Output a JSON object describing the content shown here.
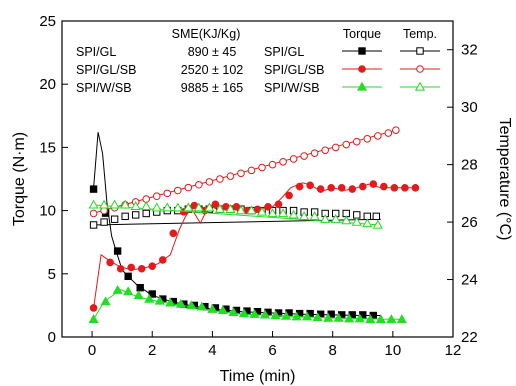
{
  "chart_data": {
    "type": "line",
    "xlabel": "Time (min)",
    "ylabel_left": "Torque (N·m)",
    "ylabel_right": "Temperature (°C)",
    "xlim": [
      -1,
      12
    ],
    "ylim_left": [
      0,
      25
    ],
    "ylim_right": [
      22,
      33
    ],
    "xticks": [
      0,
      2,
      4,
      6,
      8,
      10,
      12
    ],
    "yticks_left": [
      0,
      5,
      10,
      15,
      20,
      25
    ],
    "yticks_right": [
      22,
      24,
      26,
      28,
      30,
      32
    ],
    "grid": false,
    "sme_table": {
      "header": "SME(KJ/Kg)",
      "rows": [
        {
          "sample": "SPI/GL",
          "value": "890 ± 45"
        },
        {
          "sample": "SPI/GL/SB",
          "value": "2520 ± 102"
        },
        {
          "sample": "SPI/W/SB",
          "value": "9885 ± 165"
        }
      ]
    },
    "legend": {
      "placement": "top-right",
      "col_torque": "Torque",
      "col_temp": "Temp.",
      "entries": [
        {
          "label": "SPI/GL",
          "color": "#000000",
          "marker": "square"
        },
        {
          "label": "SPI/GL/SB",
          "color": "#e41a1c",
          "marker": "circle"
        },
        {
          "label": "SPI/W/SB",
          "color": "#22dd22",
          "marker": "triangle"
        }
      ]
    },
    "series": [
      {
        "name": "SPI/GL",
        "kind": "torque",
        "axis": "left",
        "color": "#000000",
        "marker": "square",
        "filled": true,
        "line": [
          [
            0.05,
            11.8
          ],
          [
            0.2,
            16.2
          ],
          [
            0.35,
            14.5
          ],
          [
            0.5,
            10.5
          ],
          [
            0.65,
            8.0
          ],
          [
            0.8,
            6.8
          ],
          [
            1.0,
            5.3
          ],
          [
            1.2,
            4.8
          ],
          [
            1.5,
            4.1
          ],
          [
            2.0,
            3.3
          ],
          [
            2.5,
            2.9
          ],
          [
            3.0,
            2.6
          ],
          [
            4.0,
            2.2
          ],
          [
            5.0,
            2.0
          ],
          [
            6.0,
            1.9
          ],
          [
            7.0,
            1.8
          ],
          [
            8.0,
            1.75
          ],
          [
            9.0,
            1.7
          ],
          [
            9.6,
            1.7
          ]
        ],
        "points": [
          [
            0.05,
            11.7
          ],
          [
            0.45,
            9.8
          ],
          [
            0.85,
            6.8
          ],
          [
            1.2,
            4.8
          ],
          [
            1.6,
            3.9
          ],
          [
            2.0,
            3.4
          ],
          [
            2.35,
            3.0
          ],
          [
            2.7,
            2.8
          ],
          [
            3.05,
            2.6
          ],
          [
            3.4,
            2.5
          ],
          [
            3.75,
            2.4
          ],
          [
            4.1,
            2.3
          ],
          [
            4.45,
            2.2
          ],
          [
            4.8,
            2.1
          ],
          [
            5.15,
            2.05
          ],
          [
            5.5,
            2.0
          ],
          [
            5.85,
            1.95
          ],
          [
            6.2,
            1.9
          ],
          [
            6.55,
            1.9
          ],
          [
            6.9,
            1.85
          ],
          [
            7.25,
            1.85
          ],
          [
            7.6,
            1.8
          ],
          [
            7.95,
            1.8
          ],
          [
            8.3,
            1.75
          ],
          [
            8.65,
            1.75
          ],
          [
            9.0,
            1.75
          ],
          [
            9.35,
            1.7
          ]
        ]
      },
      {
        "name": "SPI/GL",
        "kind": "temp",
        "axis": "right",
        "color": "#000000",
        "marker": "square",
        "filled": false,
        "line": [
          [
            0,
            25.9
          ],
          [
            9.6,
            26.1
          ]
        ],
        "points": [
          [
            0.05,
            25.9
          ],
          [
            0.4,
            26.0
          ],
          [
            0.75,
            26.1
          ],
          [
            1.1,
            26.2
          ],
          [
            1.45,
            26.25
          ],
          [
            1.8,
            26.3
          ],
          [
            2.15,
            26.35
          ],
          [
            2.5,
            26.4
          ],
          [
            2.85,
            26.4
          ],
          [
            3.2,
            26.45
          ],
          [
            3.55,
            26.45
          ],
          [
            3.9,
            26.45
          ],
          [
            4.25,
            26.45
          ],
          [
            4.6,
            26.45
          ],
          [
            4.95,
            26.45
          ],
          [
            5.3,
            26.4
          ],
          [
            5.65,
            26.4
          ],
          [
            6.0,
            26.4
          ],
          [
            6.35,
            26.4
          ],
          [
            6.7,
            26.4
          ],
          [
            7.05,
            26.35
          ],
          [
            7.4,
            26.35
          ],
          [
            7.75,
            26.3
          ],
          [
            8.1,
            26.3
          ],
          [
            8.45,
            26.3
          ],
          [
            8.8,
            26.25
          ],
          [
            9.15,
            26.2
          ],
          [
            9.45,
            26.2
          ]
        ]
      },
      {
        "name": "SPI/GL/SB",
        "kind": "torque",
        "axis": "left",
        "color": "#e41a1c",
        "marker": "circle",
        "filled": true,
        "line": [
          [
            0.05,
            2.3
          ],
          [
            0.3,
            6.5
          ],
          [
            0.6,
            6.0
          ],
          [
            0.9,
            5.6
          ],
          [
            1.3,
            5.3
          ],
          [
            1.8,
            5.5
          ],
          [
            2.2,
            5.8
          ],
          [
            2.6,
            6.5
          ],
          [
            2.9,
            8.5
          ],
          [
            3.1,
            9.5
          ],
          [
            3.3,
            10.2
          ],
          [
            3.6,
            9.0
          ],
          [
            3.9,
            10.5
          ],
          [
            4.2,
            10.0
          ],
          [
            4.5,
            10.4
          ],
          [
            5.0,
            10.0
          ],
          [
            5.5,
            10.1
          ],
          [
            6.0,
            10.3
          ],
          [
            6.3,
            11.0
          ],
          [
            6.6,
            11.8
          ],
          [
            7.0,
            12.2
          ],
          [
            7.3,
            12.0
          ],
          [
            7.6,
            11.5
          ],
          [
            8.0,
            11.8
          ],
          [
            8.4,
            11.6
          ],
          [
            8.8,
            11.8
          ],
          [
            9.2,
            12.1
          ],
          [
            9.6,
            11.8
          ],
          [
            10.0,
            11.8
          ],
          [
            10.8,
            11.8
          ]
        ],
        "points": [
          [
            0.05,
            2.3
          ],
          [
            0.6,
            5.9
          ],
          [
            0.95,
            5.4
          ],
          [
            1.3,
            5.5
          ],
          [
            1.65,
            5.4
          ],
          [
            2.0,
            5.6
          ],
          [
            2.35,
            6.1
          ],
          [
            2.7,
            8.2
          ],
          [
            3.05,
            9.9
          ],
          [
            3.4,
            10.4
          ],
          [
            3.75,
            10.0
          ],
          [
            4.1,
            10.5
          ],
          [
            4.45,
            10.3
          ],
          [
            4.8,
            10.3
          ],
          [
            5.15,
            10.0
          ],
          [
            5.5,
            10.1
          ],
          [
            5.85,
            10.3
          ],
          [
            6.2,
            10.5
          ],
          [
            6.55,
            11.2
          ],
          [
            6.9,
            11.9
          ],
          [
            7.25,
            12.0
          ],
          [
            7.6,
            11.7
          ],
          [
            7.95,
            11.8
          ],
          [
            8.3,
            11.8
          ],
          [
            8.65,
            11.7
          ],
          [
            9.0,
            11.9
          ],
          [
            9.35,
            12.1
          ],
          [
            9.7,
            11.9
          ],
          [
            10.05,
            11.8
          ],
          [
            10.4,
            11.8
          ],
          [
            10.75,
            11.8
          ]
        ]
      },
      {
        "name": "SPI/GL/SB",
        "kind": "temp",
        "axis": "right",
        "color": "#e41a1c",
        "marker": "circle",
        "filled": false,
        "line": [
          [
            0,
            26.3
          ],
          [
            10.1,
            29.2
          ]
        ],
        "points": [
          [
            0.05,
            26.3
          ],
          [
            0.4,
            26.4
          ],
          [
            0.75,
            26.5
          ],
          [
            1.1,
            26.6
          ],
          [
            1.45,
            26.7
          ],
          [
            1.8,
            26.8
          ],
          [
            2.15,
            26.9
          ],
          [
            2.5,
            27.0
          ],
          [
            2.85,
            27.1
          ],
          [
            3.2,
            27.2
          ],
          [
            3.55,
            27.3
          ],
          [
            3.9,
            27.4
          ],
          [
            4.25,
            27.5
          ],
          [
            4.6,
            27.6
          ],
          [
            4.95,
            27.7
          ],
          [
            5.3,
            27.8
          ],
          [
            5.65,
            27.9
          ],
          [
            6.0,
            28.0
          ],
          [
            6.35,
            28.1
          ],
          [
            6.7,
            28.2
          ],
          [
            7.05,
            28.3
          ],
          [
            7.4,
            28.4
          ],
          [
            7.75,
            28.5
          ],
          [
            8.1,
            28.6
          ],
          [
            8.45,
            28.7
          ],
          [
            8.8,
            28.8
          ],
          [
            9.15,
            28.9
          ],
          [
            9.5,
            29.0
          ],
          [
            9.85,
            29.1
          ],
          [
            10.1,
            29.2
          ]
        ]
      },
      {
        "name": "SPI/W/SB",
        "kind": "torque",
        "axis": "left",
        "color": "#22dd22",
        "marker": "triangle",
        "filled": true,
        "line": [
          [
            0.05,
            1.4
          ],
          [
            0.4,
            2.8
          ],
          [
            0.7,
            3.3
          ],
          [
            0.9,
            3.8
          ],
          [
            1.2,
            3.5
          ],
          [
            1.5,
            3.2
          ],
          [
            2.0,
            2.9
          ],
          [
            2.5,
            2.7
          ],
          [
            3.0,
            2.5
          ],
          [
            4.0,
            2.1
          ],
          [
            5.0,
            1.8
          ],
          [
            6.0,
            1.7
          ],
          [
            7.0,
            1.6
          ],
          [
            8.0,
            1.5
          ],
          [
            9.0,
            1.45
          ],
          [
            10.0,
            1.4
          ],
          [
            10.3,
            1.4
          ]
        ],
        "points": [
          [
            0.05,
            1.4
          ],
          [
            0.45,
            2.8
          ],
          [
            0.85,
            3.7
          ],
          [
            1.2,
            3.6
          ],
          [
            1.55,
            3.3
          ],
          [
            1.9,
            3.0
          ],
          [
            2.25,
            2.85
          ],
          [
            2.6,
            2.7
          ],
          [
            2.95,
            2.6
          ],
          [
            3.3,
            2.5
          ],
          [
            3.65,
            2.4
          ],
          [
            4.0,
            2.2
          ],
          [
            4.35,
            2.1
          ],
          [
            4.7,
            1.95
          ],
          [
            5.05,
            1.85
          ],
          [
            5.4,
            1.8
          ],
          [
            5.75,
            1.75
          ],
          [
            6.1,
            1.7
          ],
          [
            6.45,
            1.65
          ],
          [
            6.8,
            1.6
          ],
          [
            7.15,
            1.6
          ],
          [
            7.5,
            1.55
          ],
          [
            7.85,
            1.5
          ],
          [
            8.2,
            1.5
          ],
          [
            8.55,
            1.45
          ],
          [
            8.9,
            1.45
          ],
          [
            9.25,
            1.4
          ],
          [
            9.6,
            1.4
          ],
          [
            9.95,
            1.4
          ],
          [
            10.3,
            1.4
          ]
        ]
      },
      {
        "name": "SPI/W/SB",
        "kind": "temp",
        "axis": "right",
        "color": "#22dd22",
        "marker": "triangle",
        "filled": false,
        "line": [
          [
            0,
            26.6
          ],
          [
            9.6,
            25.9
          ]
        ],
        "points": [
          [
            0.05,
            26.6
          ],
          [
            0.4,
            26.6
          ],
          [
            0.75,
            26.6
          ],
          [
            1.1,
            26.6
          ],
          [
            1.45,
            26.55
          ],
          [
            1.8,
            26.55
          ],
          [
            2.15,
            26.5
          ],
          [
            2.5,
            26.5
          ],
          [
            2.85,
            26.5
          ],
          [
            3.2,
            26.5
          ],
          [
            3.55,
            26.5
          ],
          [
            3.9,
            26.5
          ],
          [
            4.25,
            26.45
          ],
          [
            4.6,
            26.45
          ],
          [
            4.95,
            26.4
          ],
          [
            5.3,
            26.4
          ],
          [
            5.65,
            26.35
          ],
          [
            6.0,
            26.3
          ],
          [
            6.35,
            26.3
          ],
          [
            6.7,
            26.25
          ],
          [
            7.05,
            26.2
          ],
          [
            7.4,
            26.2
          ],
          [
            7.75,
            26.1
          ],
          [
            8.1,
            26.1
          ],
          [
            8.45,
            26.05
          ],
          [
            8.8,
            26.0
          ],
          [
            9.15,
            25.95
          ],
          [
            9.5,
            25.9
          ]
        ]
      }
    ]
  }
}
